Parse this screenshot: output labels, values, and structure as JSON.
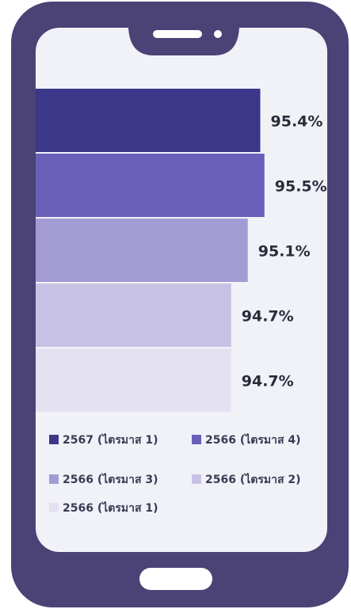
{
  "chart_data": {
    "type": "bar",
    "orientation": "horizontal",
    "categories": [
      "2567 (ไตรมาส 1)",
      "2566 (ไตรมาส 4)",
      "2566 (ไตรมาส 3)",
      "2566 (ไตรมาส 2)",
      "2566 (ไตรมาส 1)"
    ],
    "values": [
      95.4,
      95.5,
      95.1,
      94.7,
      94.7
    ],
    "value_labels": [
      "95.4%",
      "95.5%",
      "95.1%",
      "94.7%",
      "94.7%"
    ],
    "colors": [
      "#3d3789",
      "#6a5fb9",
      "#a39cd4",
      "#c7c2e3",
      "#e4e2f2"
    ],
    "xlim": [
      90,
      96
    ]
  }
}
